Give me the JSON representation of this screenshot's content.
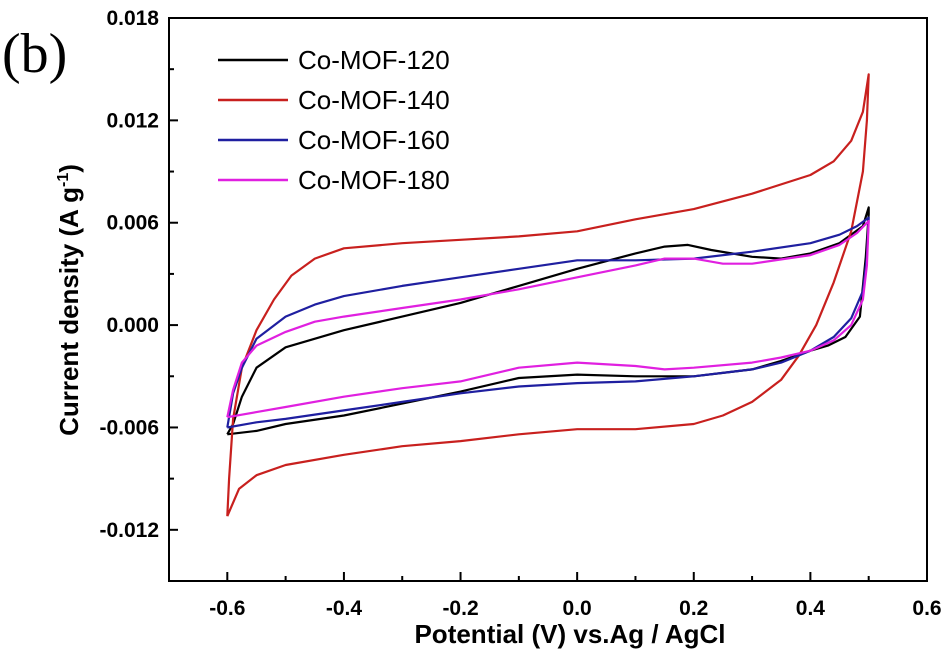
{
  "panel_label": "(b)",
  "chart_data": {
    "type": "line",
    "title": "",
    "xlabel": "Potential (V) vs.Ag / AgCl",
    "ylabel_main": "Current density (A g",
    "ylabel_sup": "-1",
    "ylabel_close": ")",
    "xlim": [
      -0.7,
      0.6
    ],
    "ylim": [
      -0.015,
      0.018
    ],
    "x_ticks": [
      -0.6,
      -0.4,
      -0.2,
      0.0,
      0.2,
      0.4,
      0.6
    ],
    "x_tick_labels": [
      "-0.6",
      "-0.4",
      "-0.2",
      "0.0",
      "0.2",
      "0.4",
      "0.6"
    ],
    "y_ticks": [
      -0.012,
      -0.006,
      0.0,
      0.006,
      0.012,
      0.018
    ],
    "y_tick_labels": [
      "-0.012",
      "-0.006",
      "0.000",
      "0.006",
      "0.012",
      "0.018"
    ],
    "legend_position": "top-left",
    "grid": false,
    "series": [
      {
        "name": "Co-MOF-120",
        "color": "#000000",
        "points": [
          [
            -0.6,
            -0.0064
          ],
          [
            -0.59,
            -0.0058
          ],
          [
            -0.575,
            -0.0042
          ],
          [
            -0.55,
            -0.0025
          ],
          [
            -0.5,
            -0.0013
          ],
          [
            -0.4,
            -0.0003
          ],
          [
            -0.3,
            0.0005
          ],
          [
            -0.2,
            0.0013
          ],
          [
            -0.1,
            0.0023
          ],
          [
            0.0,
            0.0033
          ],
          [
            0.1,
            0.0042
          ],
          [
            0.15,
            0.0046
          ],
          [
            0.19,
            0.0047
          ],
          [
            0.23,
            0.0044
          ],
          [
            0.3,
            0.004
          ],
          [
            0.35,
            0.0039
          ],
          [
            0.4,
            0.0042
          ],
          [
            0.45,
            0.0048
          ],
          [
            0.49,
            0.0058
          ],
          [
            0.5,
            0.0069
          ],
          [
            0.5,
            0.0065
          ],
          [
            0.495,
            0.004
          ],
          [
            0.485,
            0.0005
          ],
          [
            0.46,
            -0.0007
          ],
          [
            0.43,
            -0.0012
          ],
          [
            0.4,
            -0.0015
          ],
          [
            0.35,
            -0.0021
          ],
          [
            0.3,
            -0.0026
          ],
          [
            0.25,
            -0.0028
          ],
          [
            0.2,
            -0.003
          ],
          [
            0.1,
            -0.003
          ],
          [
            0.0,
            -0.0029
          ],
          [
            -0.1,
            -0.0031
          ],
          [
            -0.2,
            -0.0039
          ],
          [
            -0.3,
            -0.0046
          ],
          [
            -0.4,
            -0.0053
          ],
          [
            -0.5,
            -0.0058
          ],
          [
            -0.55,
            -0.0062
          ],
          [
            -0.6,
            -0.0064
          ]
        ]
      },
      {
        "name": "Co-MOF-140",
        "color": "#c8201e",
        "points": [
          [
            -0.6,
            -0.0112
          ],
          [
            -0.597,
            -0.009
          ],
          [
            -0.59,
            -0.0055
          ],
          [
            -0.575,
            -0.0025
          ],
          [
            -0.55,
            -0.0003
          ],
          [
            -0.52,
            0.0015
          ],
          [
            -0.49,
            0.0029
          ],
          [
            -0.45,
            0.0039
          ],
          [
            -0.4,
            0.0045
          ],
          [
            -0.3,
            0.0048
          ],
          [
            -0.2,
            0.005
          ],
          [
            -0.1,
            0.0052
          ],
          [
            0.0,
            0.0055
          ],
          [
            0.1,
            0.0062
          ],
          [
            0.2,
            0.0068
          ],
          [
            0.3,
            0.0077
          ],
          [
            0.4,
            0.0088
          ],
          [
            0.44,
            0.0096
          ],
          [
            0.47,
            0.0108
          ],
          [
            0.49,
            0.0125
          ],
          [
            0.5,
            0.0147
          ],
          [
            0.497,
            0.012
          ],
          [
            0.49,
            0.009
          ],
          [
            0.47,
            0.0055
          ],
          [
            0.44,
            0.0025
          ],
          [
            0.41,
            0.0
          ],
          [
            0.38,
            -0.0018
          ],
          [
            0.35,
            -0.0032
          ],
          [
            0.3,
            -0.0045
          ],
          [
            0.25,
            -0.0053
          ],
          [
            0.2,
            -0.0058
          ],
          [
            0.1,
            -0.0061
          ],
          [
            0.0,
            -0.0061
          ],
          [
            -0.1,
            -0.0064
          ],
          [
            -0.2,
            -0.0068
          ],
          [
            -0.3,
            -0.0071
          ],
          [
            -0.4,
            -0.0076
          ],
          [
            -0.5,
            -0.0082
          ],
          [
            -0.55,
            -0.0088
          ],
          [
            -0.58,
            -0.0096
          ],
          [
            -0.6,
            -0.0112
          ]
        ]
      },
      {
        "name": "Co-MOF-160",
        "color": "#1f1fa0",
        "points": [
          [
            -0.6,
            -0.006
          ],
          [
            -0.59,
            -0.004
          ],
          [
            -0.575,
            -0.0025
          ],
          [
            -0.55,
            -0.0008
          ],
          [
            -0.5,
            0.0005
          ],
          [
            -0.45,
            0.0012
          ],
          [
            -0.4,
            0.0017
          ],
          [
            -0.3,
            0.0023
          ],
          [
            -0.2,
            0.0028
          ],
          [
            -0.1,
            0.0033
          ],
          [
            0.0,
            0.0038
          ],
          [
            0.1,
            0.0038
          ],
          [
            0.2,
            0.0039
          ],
          [
            0.3,
            0.0043
          ],
          [
            0.4,
            0.0048
          ],
          [
            0.45,
            0.0053
          ],
          [
            0.48,
            0.0058
          ],
          [
            0.5,
            0.0063
          ],
          [
            0.497,
            0.004
          ],
          [
            0.49,
            0.002
          ],
          [
            0.47,
            0.0004
          ],
          [
            0.44,
            -0.0007
          ],
          [
            0.4,
            -0.0015
          ],
          [
            0.35,
            -0.0022
          ],
          [
            0.3,
            -0.0026
          ],
          [
            0.2,
            -0.003
          ],
          [
            0.1,
            -0.0033
          ],
          [
            0.0,
            -0.0034
          ],
          [
            -0.1,
            -0.0036
          ],
          [
            -0.2,
            -0.004
          ],
          [
            -0.3,
            -0.0045
          ],
          [
            -0.4,
            -0.005
          ],
          [
            -0.5,
            -0.0055
          ],
          [
            -0.55,
            -0.0057
          ],
          [
            -0.6,
            -0.006
          ]
        ]
      },
      {
        "name": "Co-MOF-180",
        "color": "#e020e0",
        "points": [
          [
            -0.6,
            -0.0054
          ],
          [
            -0.59,
            -0.0038
          ],
          [
            -0.575,
            -0.0022
          ],
          [
            -0.55,
            -0.0012
          ],
          [
            -0.5,
            -0.0004
          ],
          [
            -0.45,
            0.0002
          ],
          [
            -0.4,
            0.0005
          ],
          [
            -0.3,
            0.001
          ],
          [
            -0.2,
            0.0015
          ],
          [
            -0.1,
            0.0021
          ],
          [
            0.0,
            0.0028
          ],
          [
            0.1,
            0.0035
          ],
          [
            0.15,
            0.0039
          ],
          [
            0.2,
            0.0039
          ],
          [
            0.25,
            0.0036
          ],
          [
            0.3,
            0.0036
          ],
          [
            0.4,
            0.0041
          ],
          [
            0.45,
            0.0047
          ],
          [
            0.48,
            0.0054
          ],
          [
            0.5,
            0.0061
          ],
          [
            0.497,
            0.0035
          ],
          [
            0.49,
            0.0015
          ],
          [
            0.47,
            0.0
          ],
          [
            0.44,
            -0.0009
          ],
          [
            0.4,
            -0.0015
          ],
          [
            0.35,
            -0.0019
          ],
          [
            0.3,
            -0.0022
          ],
          [
            0.2,
            -0.0025
          ],
          [
            0.15,
            -0.0026
          ],
          [
            0.1,
            -0.0024
          ],
          [
            0.0,
            -0.0022
          ],
          [
            -0.1,
            -0.0025
          ],
          [
            -0.2,
            -0.0033
          ],
          [
            -0.3,
            -0.0037
          ],
          [
            -0.4,
            -0.0042
          ],
          [
            -0.5,
            -0.0048
          ],
          [
            -0.55,
            -0.0051
          ],
          [
            -0.6,
            -0.0054
          ]
        ]
      }
    ]
  }
}
